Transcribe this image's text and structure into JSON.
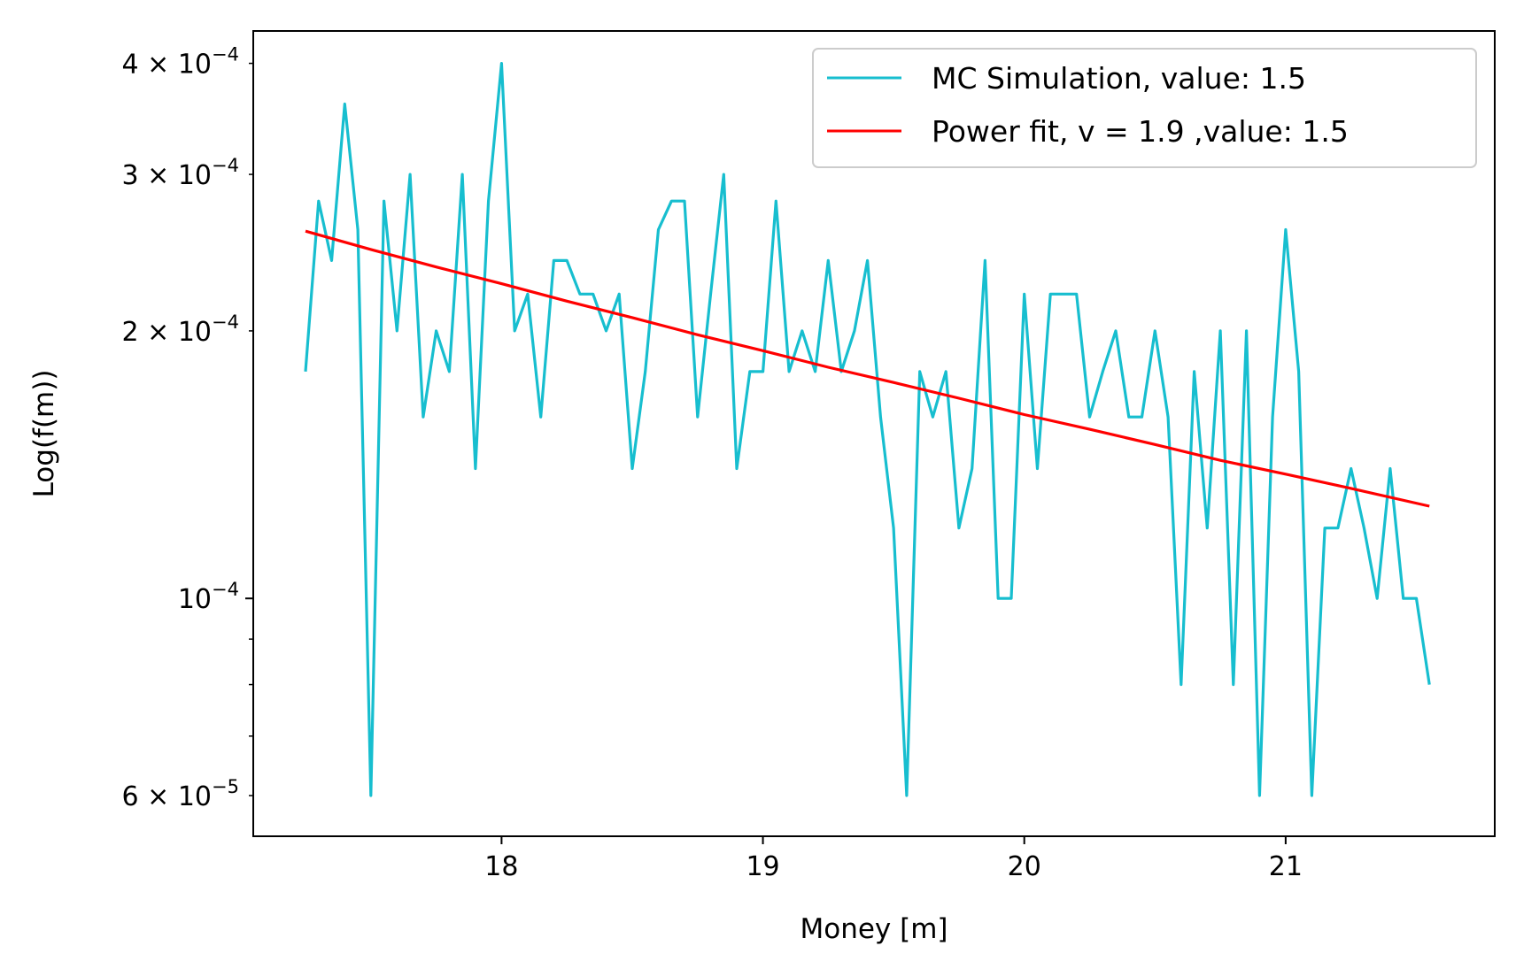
{
  "chart_data": {
    "type": "line",
    "title": "",
    "xlabel": "Money [m]",
    "ylabel": "Log(f(m))",
    "xscale": "linear",
    "yscale": "log",
    "xlim": [
      17.05,
      21.8
    ],
    "ylim": [
      5.4e-05,
      0.000435
    ],
    "grid": false,
    "legend_position": "top-right",
    "x_ticks": [
      {
        "value": 18,
        "label": "18"
      },
      {
        "value": 19,
        "label": "19"
      },
      {
        "value": 20,
        "label": "20"
      },
      {
        "value": 21,
        "label": "21"
      }
    ],
    "y_major_ticks": [
      {
        "value": 0.0001,
        "mantissa": "",
        "exponent": "−4"
      }
    ],
    "y_minor_ticks": [
      {
        "value": 6e-05,
        "mantissa": "6",
        "exponent": "−5"
      },
      {
        "value": 7e-05,
        "mantissa": "",
        "exponent": ""
      },
      {
        "value": 8e-05,
        "mantissa": "",
        "exponent": ""
      },
      {
        "value": 9e-05,
        "mantissa": "",
        "exponent": ""
      },
      {
        "value": 0.0002,
        "mantissa": "2",
        "exponent": "−4"
      },
      {
        "value": 0.0003,
        "mantissa": "3",
        "exponent": "−4"
      },
      {
        "value": 0.0004,
        "mantissa": "4",
        "exponent": "−4"
      }
    ],
    "series": [
      {
        "name": "MC Simulation, value: 1.5",
        "color": "#17becf",
        "x": [
          17.25,
          17.3,
          17.35,
          17.4,
          17.45,
          17.5,
          17.55,
          17.6,
          17.65,
          17.7,
          17.75,
          17.8,
          17.85,
          17.9,
          17.95,
          18.0,
          18.05,
          18.1,
          18.15,
          18.2,
          18.25,
          18.3,
          18.35,
          18.4,
          18.45,
          18.5,
          18.55,
          18.6,
          18.65,
          18.7,
          18.75,
          18.8,
          18.85,
          18.9,
          18.95,
          19.0,
          19.05,
          19.1,
          19.15,
          19.2,
          19.25,
          19.3,
          19.35,
          19.4,
          19.45,
          19.5,
          19.55,
          19.6,
          19.65,
          19.7,
          19.75,
          19.8,
          19.85,
          19.9,
          19.95,
          20.0,
          20.05,
          20.1,
          20.15,
          20.2,
          20.25,
          20.3,
          20.35,
          20.4,
          20.45,
          20.5,
          20.55,
          20.6,
          20.65,
          20.7,
          20.75,
          20.8,
          20.85,
          20.9,
          20.95,
          21.0,
          21.05,
          21.1,
          21.15,
          21.2,
          21.25,
          21.3,
          21.35,
          21.4,
          21.45,
          21.5,
          21.55
        ],
        "y": [
          0.00018,
          0.00028,
          0.00024,
          0.00036,
          0.00026,
          6e-05,
          0.00028,
          0.0002,
          0.0003,
          0.00016,
          0.0002,
          0.00018,
          0.0003,
          0.00014,
          0.00028,
          0.0004,
          0.0002,
          0.00022,
          0.00016,
          0.00024,
          0.00024,
          0.00022,
          0.00022,
          0.0002,
          0.00022,
          0.00014,
          0.00018,
          0.00026,
          0.00028,
          0.00028,
          0.00016,
          0.00022,
          0.0003,
          0.00014,
          0.00018,
          0.00018,
          0.00028,
          0.00018,
          0.0002,
          0.00018,
          0.00024,
          0.00018,
          0.0002,
          0.00024,
          0.00016,
          0.00012,
          6e-05,
          0.00018,
          0.00016,
          0.00018,
          0.00012,
          0.00014,
          0.00024,
          0.0001,
          0.0001,
          0.00022,
          0.00014,
          0.00022,
          0.00022,
          0.00022,
          0.00016,
          0.00018,
          0.0002,
          0.00016,
          0.00016,
          0.0002,
          0.00016,
          8e-05,
          0.00018,
          0.00012,
          0.0002,
          8e-05,
          0.0002,
          6e-05,
          0.00016,
          0.00026,
          0.00018,
          6e-05,
          0.00012,
          0.00012,
          0.00014,
          0.00012,
          0.0001,
          0.00014,
          0.0001,
          0.0001,
          8e-05
        ]
      },
      {
        "name": "Power fit, v = 1.9 ,value: 1.5",
        "color": "#ff0000",
        "x": [
          17.25,
          17.5,
          17.75,
          18.0,
          18.25,
          18.5,
          18.75,
          19.0,
          19.25,
          19.5,
          19.75,
          20.0,
          20.25,
          20.5,
          20.75,
          21.0,
          21.25,
          21.55
        ],
        "y": [
          0.000259,
          0.000247,
          0.000236,
          0.000226,
          0.000216,
          0.000207,
          0.000198,
          0.00019,
          0.000182,
          0.000175,
          0.000168,
          0.000161,
          0.000155,
          0.000149,
          0.000143,
          0.000138,
          0.000133,
          0.000127
        ]
      }
    ]
  }
}
